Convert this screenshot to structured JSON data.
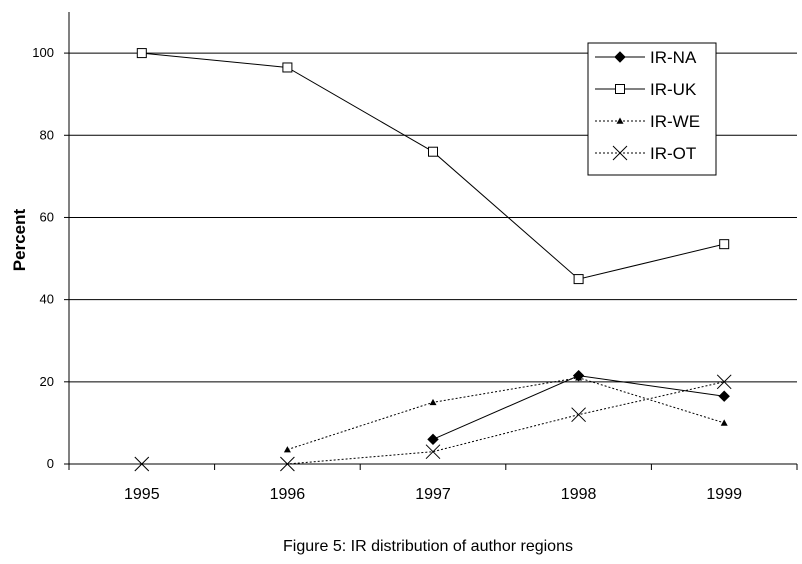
{
  "chart_data": {
    "type": "line",
    "title": "",
    "caption": "Figure 5: IR distribution of author regions",
    "xlabel": "",
    "ylabel": "Percent",
    "categories": [
      "1995",
      "1996",
      "1997",
      "1998",
      "1999"
    ],
    "ylim": [
      0,
      110
    ],
    "yticks": [
      0,
      20,
      40,
      60,
      80,
      100
    ],
    "grid": "horizontal",
    "legend_position": "top-right",
    "series": [
      {
        "name": "IR-NA",
        "values": [
          null,
          null,
          6,
          21.5,
          16.5
        ],
        "marker": "diamond-filled",
        "line": "solid"
      },
      {
        "name": "IR-UK",
        "values": [
          100,
          96.5,
          76,
          45,
          53.5
        ],
        "marker": "square-open",
        "line": "solid"
      },
      {
        "name": "IR-WE",
        "values": [
          null,
          3.5,
          15,
          21,
          10
        ],
        "marker": "triangle-filled",
        "line": "dotted"
      },
      {
        "name": "IR-OT",
        "values": [
          0,
          0,
          3,
          12,
          20
        ],
        "marker": "x",
        "line": "dotted"
      }
    ]
  }
}
